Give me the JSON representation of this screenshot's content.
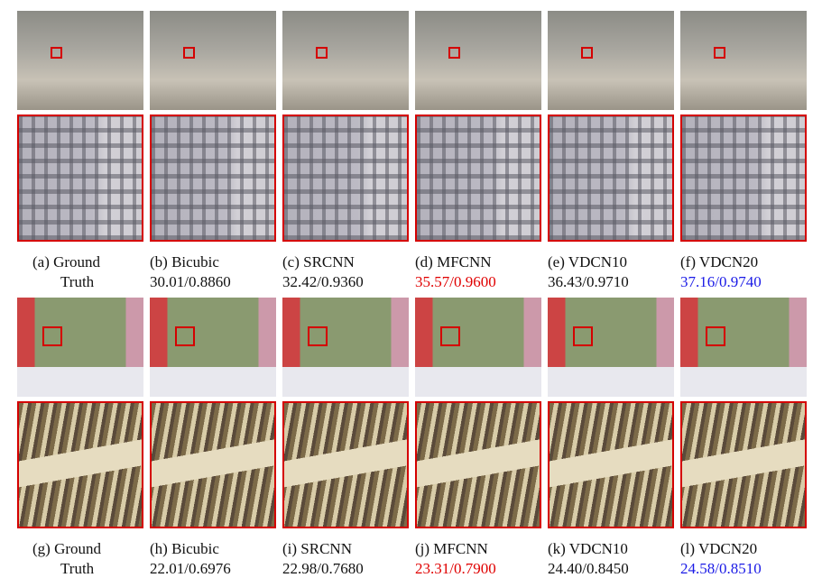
{
  "rows": [
    {
      "panels": [
        {
          "caption": [
            "(a) Ground",
            "Truth"
          ]
        },
        {
          "caption": [
            "(b) Bicubic",
            "30.01/0.8860"
          ]
        },
        {
          "caption": [
            "(c) SRCNN",
            "32.42/0.9360"
          ]
        },
        {
          "caption": [
            "(d) MFCNN",
            "35.57/0.9600"
          ]
        },
        {
          "caption": [
            "(e) VDCN10",
            "36.43/0.9710"
          ]
        },
        {
          "caption": [
            "(f) VDCN20",
            "37.16/0.9740"
          ]
        }
      ]
    },
    {
      "panels": [
        {
          "caption": [
            "(g) Ground",
            "Truth"
          ]
        },
        {
          "caption": [
            "(h) Bicubic",
            "22.01/0.6976"
          ]
        },
        {
          "caption": [
            "(i) SRCNN",
            "22.98/0.7680"
          ]
        },
        {
          "caption": [
            "(j) MFCNN",
            "23.31/0.7900"
          ]
        },
        {
          "caption": [
            "(k) VDCN10",
            "24.40/0.8450"
          ]
        },
        {
          "caption": [
            "(l) VDCN20",
            "24.58/0.8510"
          ]
        }
      ]
    }
  ]
}
